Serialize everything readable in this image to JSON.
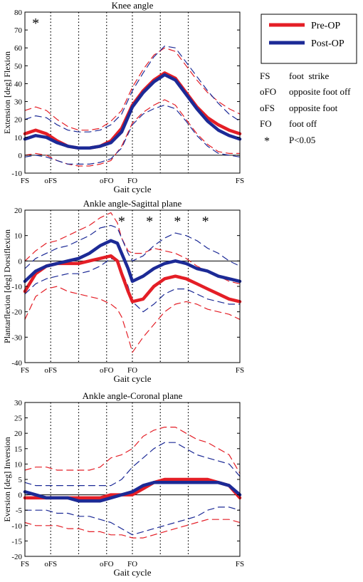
{
  "colors": {
    "pre": "#e41e26",
    "post": "#1c2a96",
    "axis": "#000000",
    "background": "#ffffff"
  },
  "legend": {
    "series": [
      {
        "label": "Pre-OP",
        "color": "#e41e26"
      },
      {
        "label": "Post-OP",
        "color": "#1c2a96"
      }
    ],
    "abbreviations": [
      {
        "abbr": "FS",
        "text": "foot  strike"
      },
      {
        "abbr": "oFO",
        "text": "opposite foot off"
      },
      {
        "abbr": "oFS",
        "text": "opposite foot"
      },
      {
        "abbr": "FO",
        "text": "foot off"
      },
      {
        "abbr": "*",
        "text": "P<0.05"
      }
    ]
  },
  "chart_data": [
    {
      "type": "line",
      "title": "Knee angle",
      "xlabel": "Gait cycle",
      "ylabel": "Extension [deg] Flexion",
      "xlim": [
        0,
        100
      ],
      "ylim": [
        -10,
        80
      ],
      "yticks": [
        -10,
        0,
        10,
        20,
        30,
        40,
        50,
        60,
        70,
        80
      ],
      "xticks": [
        {
          "x": 0,
          "label": "FS"
        },
        {
          "x": 12,
          "label": "oFS"
        },
        {
          "x": 38,
          "label": "oFO"
        },
        {
          "x": 50,
          "label": "FO"
        },
        {
          "x": 100,
          "label": "FS"
        }
      ],
      "vlines": [
        12,
        25,
        38,
        50,
        63,
        76
      ],
      "zero_line": true,
      "significance_marks": [
        5
      ],
      "x": [
        0,
        5,
        10,
        15,
        20,
        25,
        30,
        35,
        40,
        45,
        50,
        55,
        60,
        65,
        70,
        75,
        80,
        85,
        90,
        95,
        100
      ],
      "series": [
        {
          "name": "Pre-OP",
          "role": "mean",
          "color": "#e41e26",
          "values": [
            12,
            14,
            12,
            8,
            5,
            4,
            4,
            5,
            8,
            15,
            28,
            36,
            42,
            46,
            43,
            35,
            27,
            21,
            17,
            14,
            12
          ]
        },
        {
          "name": "Pre-OP",
          "role": "+1SD",
          "color": "#e41e26",
          "values": [
            25,
            27,
            25,
            20,
            16,
            14,
            14,
            15,
            19,
            25,
            38,
            48,
            56,
            60,
            58,
            50,
            42,
            35,
            30,
            26,
            23
          ]
        },
        {
          "name": "Pre-OP",
          "role": "-1SD",
          "color": "#e41e26",
          "values": [
            0,
            1,
            0,
            -3,
            -5,
            -6,
            -6,
            -5,
            -3,
            5,
            18,
            24,
            28,
            31,
            28,
            20,
            12,
            6,
            2,
            1,
            1
          ]
        },
        {
          "name": "Post-OP",
          "role": "mean",
          "color": "#1c2a96",
          "values": [
            9,
            11,
            10,
            7,
            5,
            4,
            4,
            5,
            7,
            13,
            27,
            35,
            41,
            45,
            42,
            34,
            26,
            19,
            14,
            11,
            9
          ]
        },
        {
          "name": "Post-OP",
          "role": "+1SD",
          "color": "#1c2a96",
          "values": [
            20,
            22,
            21,
            17,
            14,
            13,
            13,
            14,
            17,
            23,
            36,
            46,
            55,
            61,
            60,
            52,
            44,
            36,
            29,
            23,
            19
          ]
        },
        {
          "name": "Post-OP",
          "role": "-1SD",
          "color": "#1c2a96",
          "values": [
            -1,
            0,
            -1,
            -3,
            -5,
            -5,
            -5,
            -4,
            -2,
            4,
            17,
            23,
            26,
            28,
            26,
            19,
            11,
            5,
            1,
            0,
            -1
          ]
        }
      ]
    },
    {
      "type": "line",
      "title": "Ankle angle-Sagittal plane",
      "xlabel": "Gait cycle",
      "ylabel": "Plantarflexion [deg] Dorsiflexion",
      "xlim": [
        0,
        100
      ],
      "ylim": [
        -40,
        20
      ],
      "yticks": [
        -40,
        -30,
        -20,
        -10,
        0,
        10,
        20
      ],
      "xticks": [
        {
          "x": 0,
          "label": "FS"
        },
        {
          "x": 12,
          "label": "oFS"
        },
        {
          "x": 38,
          "label": "oFO"
        },
        {
          "x": 50,
          "label": "FO"
        },
        {
          "x": 100,
          "label": "FS"
        }
      ],
      "vlines": [
        12,
        25,
        38,
        50,
        63,
        76
      ],
      "zero_line": true,
      "significance_marks": [
        45,
        58,
        71,
        84
      ],
      "x": [
        0,
        5,
        10,
        15,
        20,
        25,
        30,
        35,
        40,
        43,
        45,
        48,
        50,
        55,
        60,
        65,
        70,
        75,
        80,
        85,
        90,
        95,
        100
      ],
      "series": [
        {
          "name": "Pre-OP",
          "role": "mean",
          "color": "#e41e26",
          "values": [
            -12,
            -5,
            -2,
            -1,
            -1,
            -1,
            0,
            1,
            2,
            0,
            -5,
            -12,
            -16,
            -15,
            -10,
            -7,
            -6,
            -7,
            -9,
            -11,
            -13,
            -15,
            -16
          ]
        },
        {
          "name": "Pre-OP",
          "role": "+1SD",
          "color": "#e41e26",
          "values": [
            0,
            4,
            7,
            8,
            10,
            12,
            14,
            17,
            19,
            15,
            9,
            4,
            3,
            3,
            5,
            4,
            3,
            1,
            -2,
            -4,
            -6,
            -8,
            -9
          ]
        },
        {
          "name": "Pre-OP",
          "role": "-1SD",
          "color": "#e41e26",
          "values": [
            -23,
            -14,
            -11,
            -10,
            -12,
            -13,
            -14,
            -15,
            -17,
            -19,
            -22,
            -30,
            -36,
            -30,
            -25,
            -20,
            -17,
            -16,
            -17,
            -19,
            -20,
            -21,
            -23
          ]
        },
        {
          "name": "Post-OP",
          "role": "mean",
          "color": "#1c2a96",
          "values": [
            -8,
            -4,
            -2,
            -1,
            0,
            1,
            3,
            6,
            8,
            7,
            3,
            -3,
            -8,
            -6,
            -3,
            -1,
            0,
            -1,
            -3,
            -4,
            -6,
            -7,
            -8
          ]
        },
        {
          "name": "Post-OP",
          "role": "+1SD",
          "color": "#1c2a96",
          "values": [
            -3,
            1,
            3,
            5,
            6,
            8,
            10,
            13,
            14,
            13,
            9,
            3,
            0,
            2,
            6,
            9,
            11,
            10,
            8,
            5,
            3,
            0,
            -2
          ]
        },
        {
          "name": "Post-OP",
          "role": "-1SD",
          "color": "#1c2a96",
          "values": [
            -13,
            -9,
            -7,
            -6,
            -5,
            -5,
            -4,
            -2,
            1,
            0,
            -4,
            -10,
            -16,
            -20,
            -17,
            -13,
            -11,
            -11,
            -13,
            -15,
            -16,
            -17,
            -17
          ]
        }
      ]
    },
    {
      "type": "line",
      "title": "Ankle angle-Coronal plane",
      "xlabel": "Gait cycle",
      "ylabel": "Eversion [deg] Inversion",
      "xlim": [
        0,
        100
      ],
      "ylim": [
        -20,
        30
      ],
      "yticks": [
        -20,
        -15,
        -10,
        -5,
        0,
        5,
        10,
        15,
        20,
        25,
        30
      ],
      "xticks": [
        {
          "x": 0,
          "label": "FS"
        },
        {
          "x": 12,
          "label": "oFS"
        },
        {
          "x": 38,
          "label": "oFO"
        },
        {
          "x": 50,
          "label": "FO"
        },
        {
          "x": 100,
          "label": "FS"
        }
      ],
      "vlines": [
        12,
        25,
        38,
        50,
        63,
        76
      ],
      "zero_line": true,
      "significance_marks": [],
      "x": [
        0,
        5,
        10,
        15,
        20,
        25,
        30,
        35,
        40,
        45,
        50,
        55,
        60,
        65,
        70,
        75,
        80,
        85,
        90,
        95,
        100
      ],
      "series": [
        {
          "name": "Pre-OP",
          "role": "mean",
          "color": "#e41e26",
          "values": [
            -1,
            -1,
            -1,
            -1,
            -1,
            -1,
            -1,
            -1,
            0,
            0,
            0,
            2,
            4,
            5,
            5,
            5,
            5,
            5,
            4,
            3,
            -1
          ]
        },
        {
          "name": "Pre-OP",
          "role": "+1SD",
          "color": "#e41e26",
          "values": [
            8,
            9,
            9,
            8,
            8,
            8,
            8,
            9,
            12,
            13,
            15,
            19,
            21,
            22,
            22,
            20,
            18,
            17,
            15,
            13,
            7
          ]
        },
        {
          "name": "Pre-OP",
          "role": "-1SD",
          "color": "#e41e26",
          "values": [
            -9,
            -10,
            -10,
            -10,
            -11,
            -11,
            -12,
            -12,
            -13,
            -13,
            -14,
            -14,
            -13,
            -12,
            -11,
            -10,
            -9,
            -8,
            -8,
            -8,
            -9
          ]
        },
        {
          "name": "Post-OP",
          "role": "mean",
          "color": "#1c2a96",
          "values": [
            1,
            0,
            -1,
            -1,
            -1,
            -2,
            -2,
            -2,
            -1,
            0,
            1,
            3,
            4,
            4,
            4,
            4,
            4,
            4,
            4,
            3,
            0
          ]
        },
        {
          "name": "Post-OP",
          "role": "+1SD",
          "color": "#1c2a96",
          "values": [
            4,
            3,
            3,
            3,
            3,
            3,
            3,
            3,
            3,
            5,
            9,
            12,
            15,
            17,
            17,
            15,
            13,
            12,
            11,
            10,
            6
          ]
        },
        {
          "name": "Post-OP",
          "role": "-1SD",
          "color": "#1c2a96",
          "values": [
            -5,
            -5,
            -5,
            -6,
            -6,
            -7,
            -7,
            -8,
            -9,
            -11,
            -13,
            -12,
            -11,
            -10,
            -9,
            -8,
            -7,
            -5,
            -4,
            -4,
            -5
          ]
        }
      ]
    }
  ]
}
